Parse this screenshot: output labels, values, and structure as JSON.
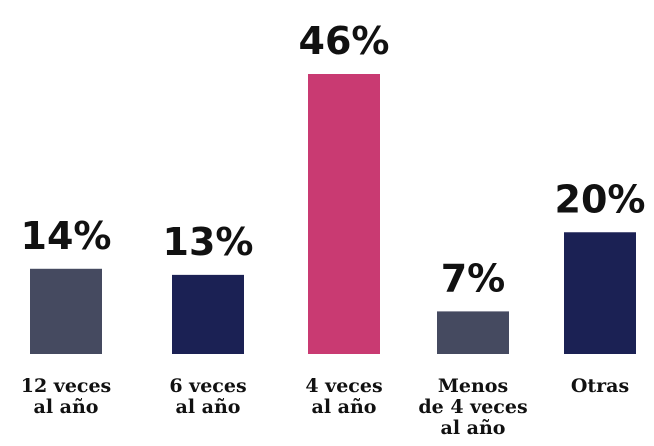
{
  "chart_data": {
    "type": "bar",
    "categories": [
      [
        "12 veces",
        "al año"
      ],
      [
        "6 veces",
        "al año"
      ],
      [
        "4 veces",
        "al año"
      ],
      [
        "Menos",
        "de 4 veces",
        "al año"
      ],
      [
        "Otras"
      ]
    ],
    "values": [
      14,
      13,
      46,
      7,
      20
    ],
    "value_labels": [
      "14%",
      "13%",
      "46%",
      "7%",
      "20%"
    ],
    "colors": [
      "#454a60",
      "#1b2154",
      "#c93a72",
      "#454a60",
      "#1b2154"
    ],
    "ylim": [
      0,
      46
    ],
    "grid": false,
    "legend": "none"
  }
}
